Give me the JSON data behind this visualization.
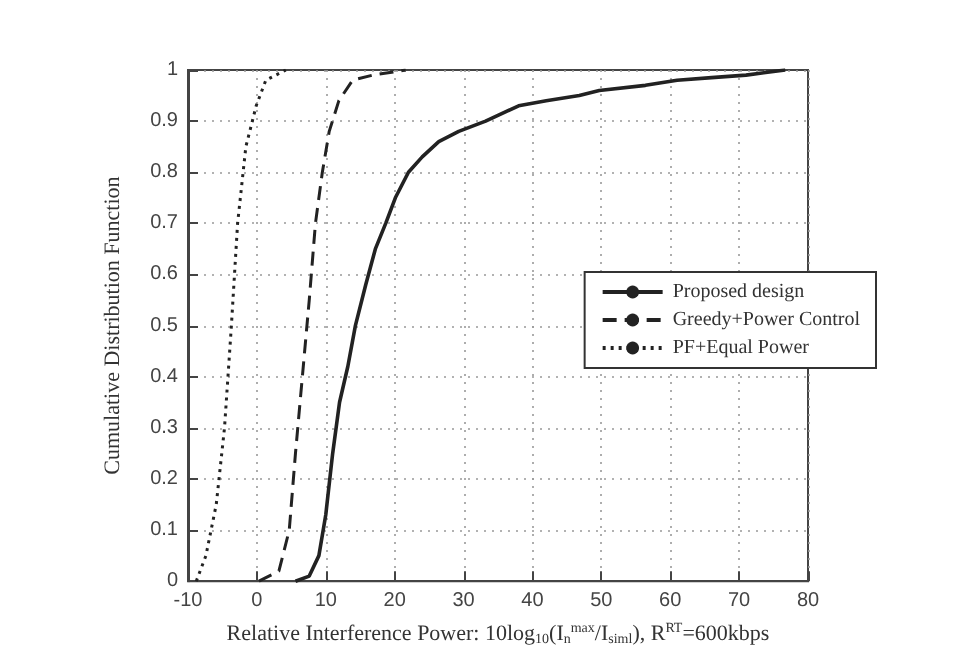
{
  "chart_data": {
    "type": "line",
    "xlabel": "Relative Interference Power: 10log$_{10}$(I$_{n}$$^{max}$/I$_{siml}$), R$^{RT}$=600kbps",
    "ylabel": "Cumulative Distribution Function",
    "series": [
      {
        "name": "Proposed design",
        "color": "#222222",
        "line_style": "solid",
        "x": [
          5.6,
          7.6,
          9,
          10,
          11,
          12,
          13.2,
          14.3,
          15.8,
          17.2,
          18.7,
          20.1,
          22,
          24,
          26.4,
          29.3,
          33.2,
          38,
          42,
          46.8,
          49.7,
          56.4,
          61,
          66,
          71,
          76.7
        ],
        "values": [
          0,
          0.01,
          0.05,
          0.13,
          0.25,
          0.35,
          0.42,
          0.5,
          0.58,
          0.65,
          0.7,
          0.75,
          0.8,
          0.83,
          0.86,
          0.88,
          0.9,
          0.93,
          0.94,
          0.95,
          0.96,
          0.97,
          0.98,
          0.985,
          0.99,
          1
        ]
      },
      {
        "name": "Greedy+Power Control",
        "color": "#222222",
        "line_style": "dashed",
        "x": [
          0.3,
          3.2,
          4.7,
          5.6,
          6.6,
          7.6,
          8.5,
          9.5,
          10.5,
          11.9,
          13.9,
          16.8,
          21.6
        ],
        "values": [
          0,
          0.02,
          0.1,
          0.25,
          0.4,
          0.55,
          0.7,
          0.8,
          0.88,
          0.94,
          0.98,
          0.99,
          1
        ]
      },
      {
        "name": "PF+Equal Power",
        "color": "#222222",
        "line_style": "dotted",
        "x": [
          -8.8,
          -7.4,
          -5.9,
          -4.7,
          -3.7,
          -2.8,
          -1.6,
          -0.1,
          1.3,
          4.2
        ],
        "values": [
          0,
          0.05,
          0.15,
          0.3,
          0.5,
          0.7,
          0.85,
          0.93,
          0.98,
          1
        ]
      }
    ],
    "xlim": [
      -10,
      80
    ],
    "xticks": [
      -10,
      0,
      10,
      20,
      30,
      40,
      50,
      60,
      70,
      80
    ],
    "ylim": [
      0,
      1
    ],
    "yticks": [
      0,
      0.1,
      0.2,
      0.3,
      0.4,
      0.5,
      0.6,
      0.7,
      0.8,
      0.9,
      1
    ],
    "grid": true,
    "legend": "right",
    "marker": "none"
  }
}
